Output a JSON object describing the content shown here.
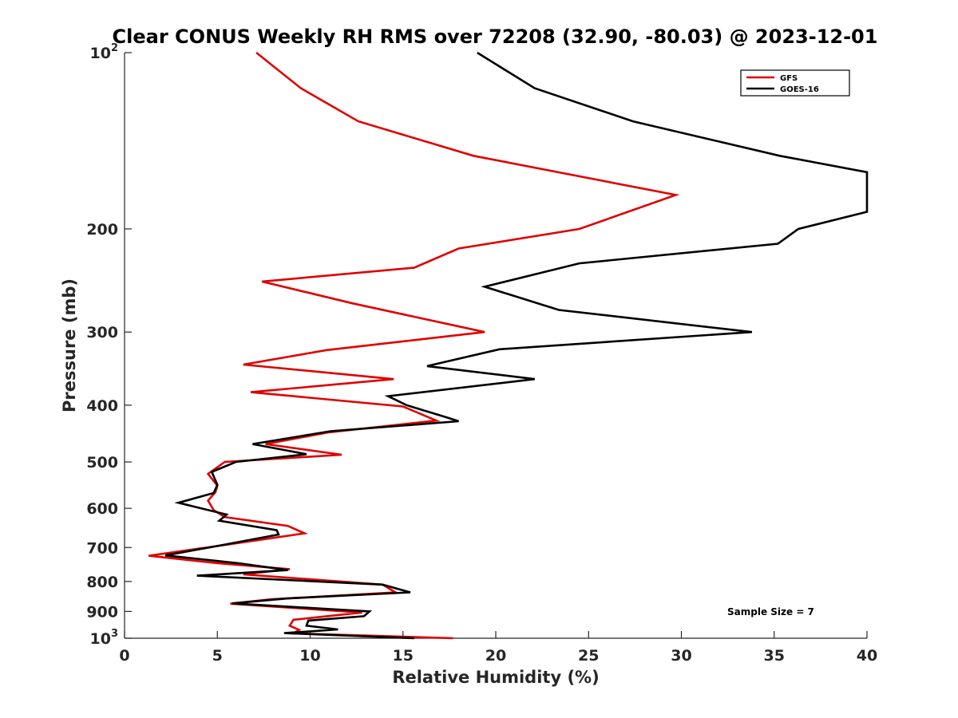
{
  "chart_data": {
    "type": "line",
    "title": "Clear CONUS Weekly RH RMS over 72208 (32.90, -80.03) @ 2023-12-01",
    "xlabel": "Relative Humidity (%)",
    "ylabel": "Pressure (mb)",
    "xlim": [
      0,
      40
    ],
    "ylim": [
      100,
      1000
    ],
    "y_scale": "log",
    "y_reversed": true,
    "x_ticks": [
      "0",
      "5",
      "10",
      "15",
      "20",
      "25",
      "30",
      "35",
      "40"
    ],
    "y_ticks": [
      {
        "value": 100,
        "base": "10",
        "exp": "2"
      },
      {
        "value": 200,
        "label": "200"
      },
      {
        "value": 300,
        "label": "300"
      },
      {
        "value": 400,
        "label": "400"
      },
      {
        "value": 500,
        "label": "500"
      },
      {
        "value": 600,
        "label": "600"
      },
      {
        "value": 700,
        "label": "700"
      },
      {
        "value": 800,
        "label": "800"
      },
      {
        "value": 900,
        "label": "900"
      },
      {
        "value": 1000,
        "base": "10",
        "exp": "3"
      }
    ],
    "legend": {
      "placement": "top-right"
    },
    "annotation": "Sample Size = 7",
    "grid": false,
    "series": [
      {
        "name": "GFS",
        "color": "#e00000",
        "points": [
          [
            7.1,
            100
          ],
          [
            9.5,
            115
          ],
          [
            12.6,
            131
          ],
          [
            18.8,
            150
          ],
          [
            29.7,
            175
          ],
          [
            24.5,
            200
          ],
          [
            18.0,
            216
          ],
          [
            15.6,
            233
          ],
          [
            7.4,
            246
          ],
          [
            12.3,
            268
          ],
          [
            19.4,
            300
          ],
          [
            10.9,
            322
          ],
          [
            6.4,
            341
          ],
          [
            14.5,
            361
          ],
          [
            6.8,
            380
          ],
          [
            15.0,
            402
          ],
          [
            16.8,
            425
          ],
          [
            11.0,
            445
          ],
          [
            7.6,
            466
          ],
          [
            11.7,
            486
          ],
          [
            5.4,
            500
          ],
          [
            4.5,
            524
          ],
          [
            5.0,
            549
          ],
          [
            4.9,
            563
          ],
          [
            4.5,
            582
          ],
          [
            4.8,
            604
          ],
          [
            5.4,
            621
          ],
          [
            8.8,
            643
          ],
          [
            9.7,
            662
          ],
          [
            5.4,
            693
          ],
          [
            1.3,
            723
          ],
          [
            4.9,
            744
          ],
          [
            8.9,
            762
          ],
          [
            6.4,
            778
          ],
          [
            13.9,
            810
          ],
          [
            14.6,
            835
          ],
          [
            7.9,
            858
          ],
          [
            5.7,
            873
          ],
          [
            12.8,
            904
          ],
          [
            9.1,
            930
          ],
          [
            8.9,
            952
          ],
          [
            9.4,
            968
          ],
          [
            9.1,
            981
          ],
          [
            17.7,
            1000
          ]
        ]
      },
      {
        "name": "GOES-16",
        "color": "#000000",
        "points": [
          [
            19.0,
            100
          ],
          [
            22.1,
            115
          ],
          [
            27.4,
            131
          ],
          [
            35.3,
            150
          ],
          [
            40.0,
            160
          ],
          [
            40.0,
            187
          ],
          [
            36.3,
            200
          ],
          [
            35.2,
            212
          ],
          [
            24.5,
            229
          ],
          [
            19.4,
            251
          ],
          [
            23.4,
            275
          ],
          [
            33.8,
            300
          ],
          [
            20.2,
            321
          ],
          [
            16.3,
            343
          ],
          [
            22.1,
            361
          ],
          [
            14.2,
            386
          ],
          [
            15.2,
            400
          ],
          [
            17.4,
            420
          ],
          [
            18.0,
            426
          ],
          [
            11.1,
            443
          ],
          [
            6.9,
            466
          ],
          [
            9.8,
            485
          ],
          [
            6.0,
            500
          ],
          [
            4.7,
            520
          ],
          [
            5.0,
            547
          ],
          [
            4.8,
            565
          ],
          [
            2.9,
            587
          ],
          [
            5.5,
            615
          ],
          [
            5.1,
            630
          ],
          [
            8.2,
            654
          ],
          [
            8.3,
            665
          ],
          [
            5.4,
            692
          ],
          [
            2.2,
            722
          ],
          [
            6.2,
            745
          ],
          [
            8.8,
            765
          ],
          [
            3.9,
            782
          ],
          [
            13.9,
            810
          ],
          [
            15.4,
            835
          ],
          [
            8.8,
            855
          ],
          [
            5.8,
            872
          ],
          [
            13.2,
            900
          ],
          [
            12.9,
            917
          ],
          [
            9.9,
            933
          ],
          [
            9.8,
            952
          ],
          [
            11.5,
            966
          ],
          [
            8.6,
            980
          ],
          [
            15.6,
            1000
          ]
        ]
      }
    ]
  }
}
